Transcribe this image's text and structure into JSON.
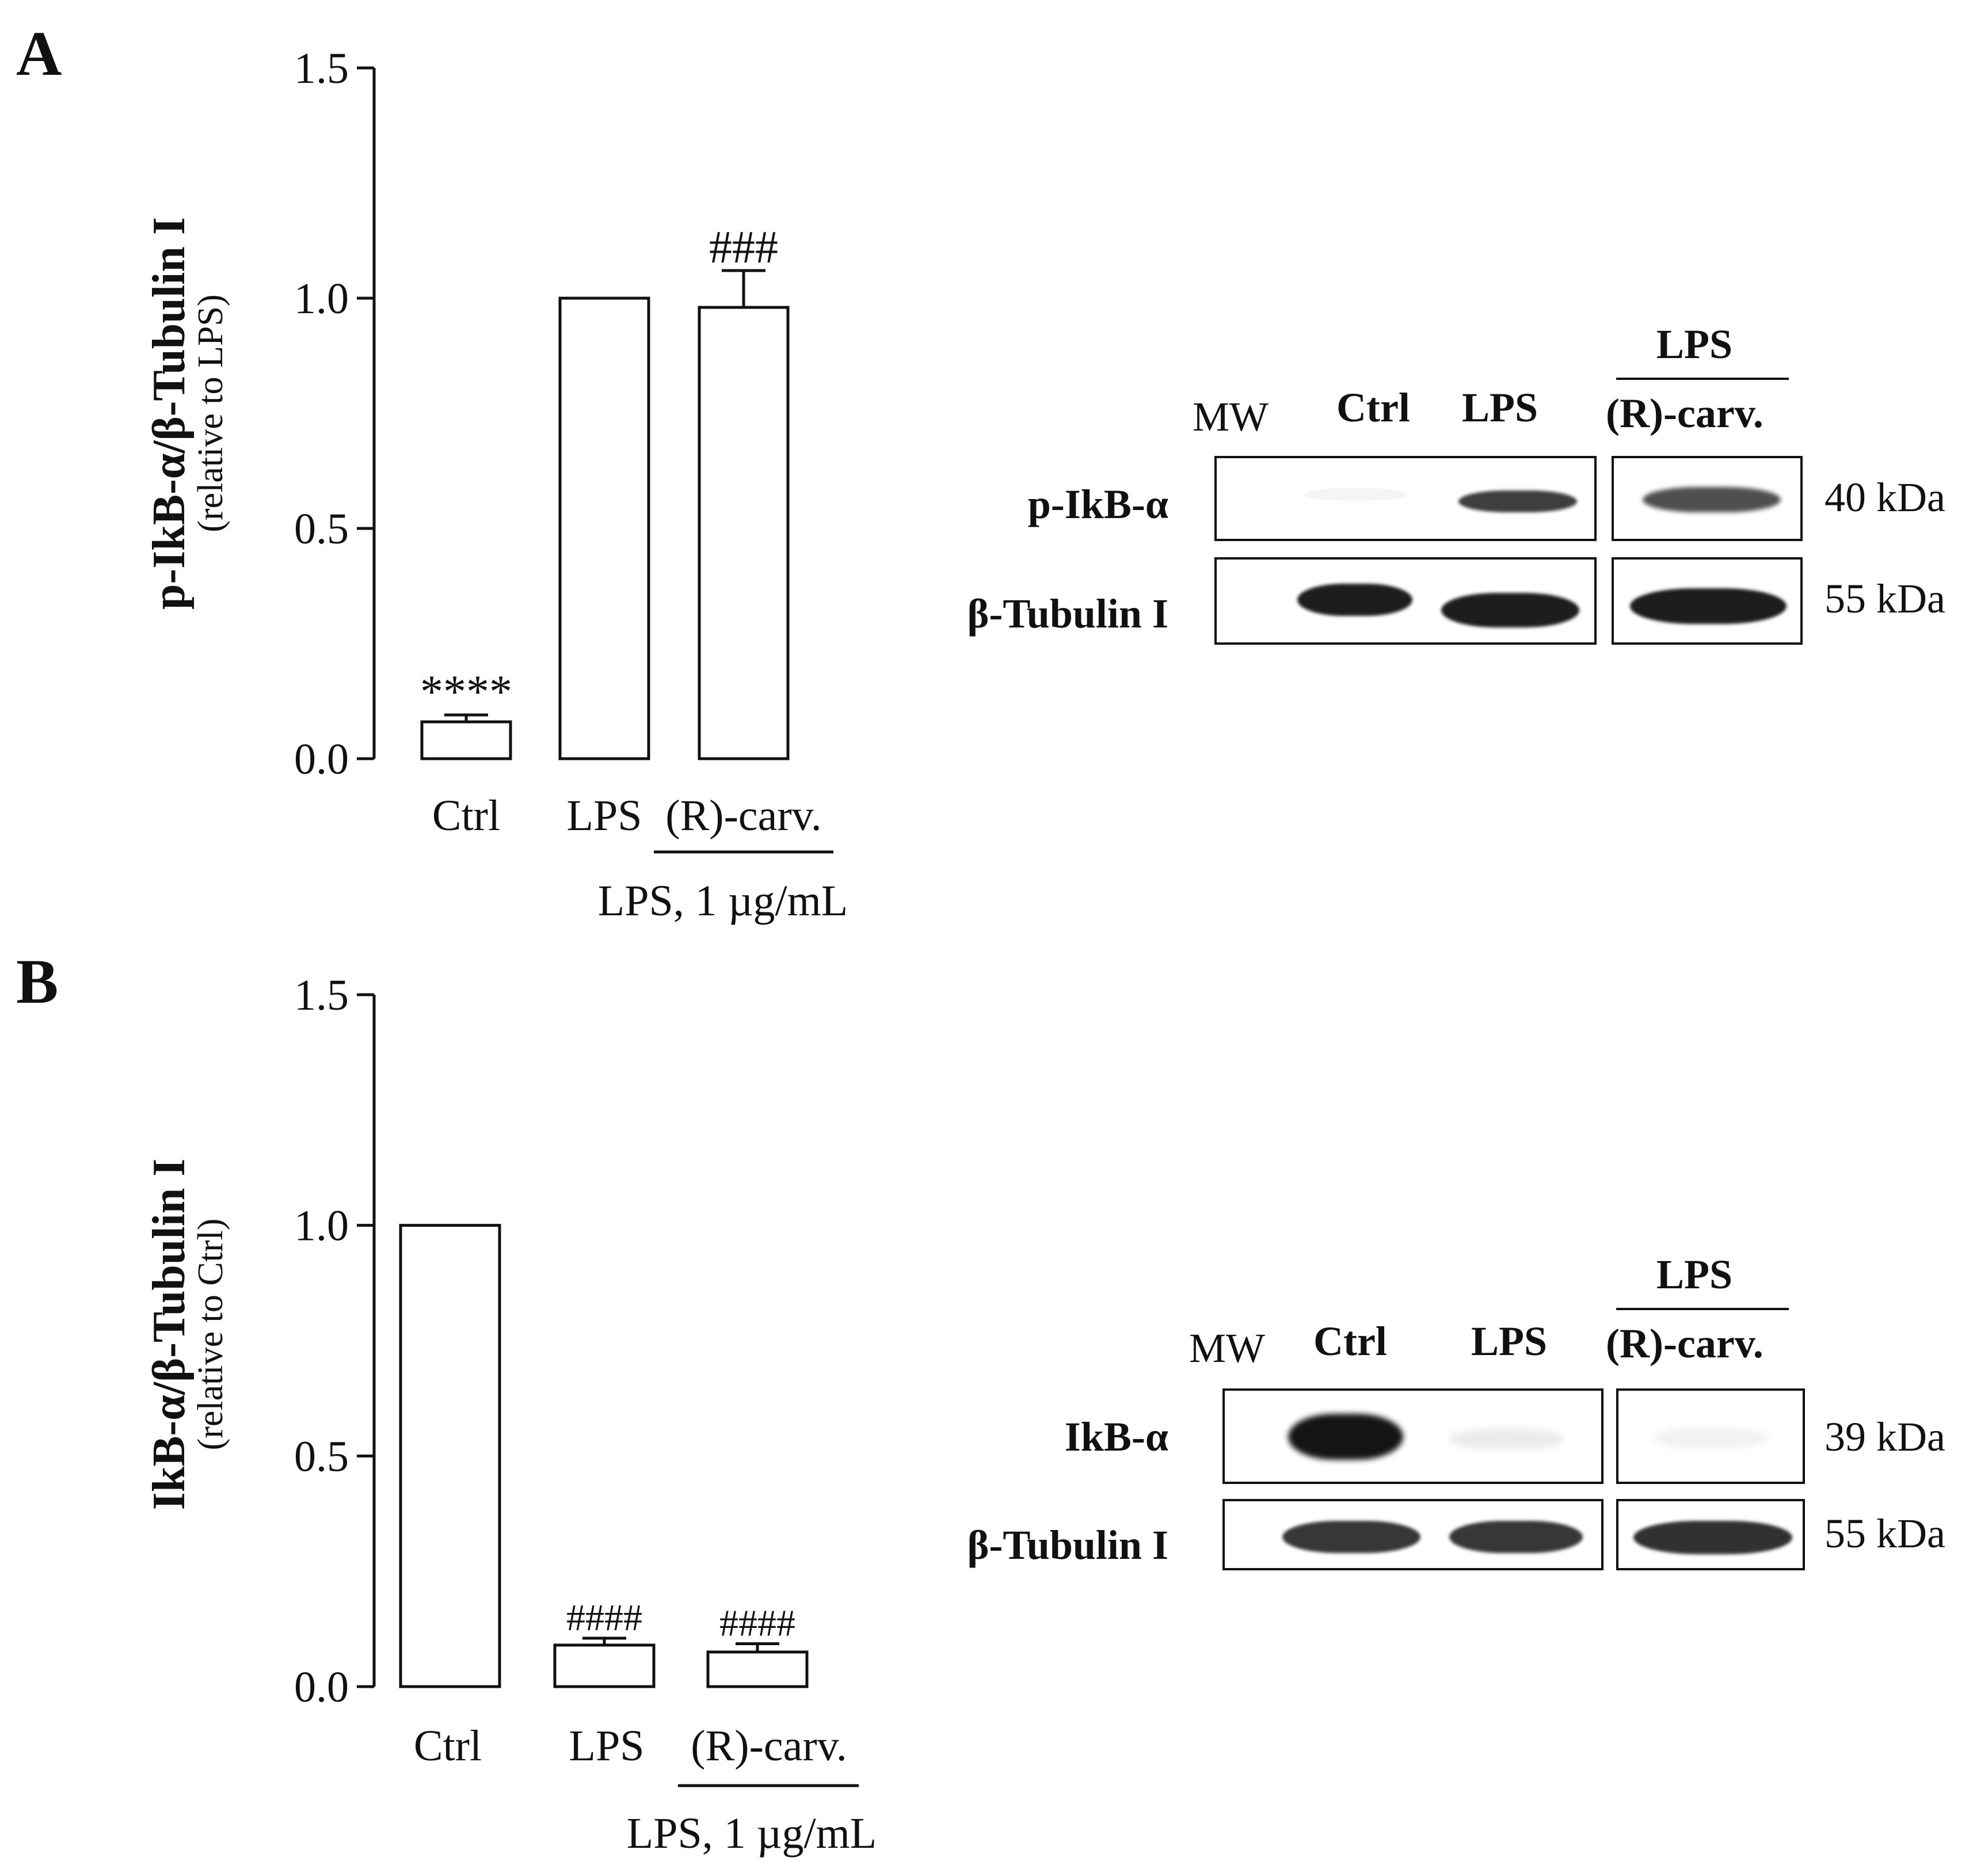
{
  "panels": [
    {
      "letter": "A",
      "blot": {
        "mw_label": "MW",
        "lane_labels": [
          "Ctrl",
          "LPS",
          "(R)-carv."
        ],
        "group_label": "LPS",
        "rows": [
          {
            "protein": "p-IkB-α",
            "kda": "40 kDa"
          },
          {
            "protein": "β-Tubulin I",
            "kda": "55 kDa"
          }
        ]
      }
    },
    {
      "letter": "B",
      "blot": {
        "mw_label": "MW",
        "lane_labels": [
          "Ctrl",
          "LPS",
          "(R)-carv."
        ],
        "group_label": "LPS",
        "rows": [
          {
            "protein": "IkB-α",
            "kda": "39 kDa"
          },
          {
            "protein": "β-Tubulin I",
            "kda": "55 kDa"
          }
        ]
      }
    }
  ],
  "chart_data": [
    {
      "type": "bar",
      "ylabel": "p-IkB-α/β-Tubulin I",
      "ylabel_sub": "(relative to LPS)",
      "yticks": [
        "0.0",
        "0.5",
        "1.0",
        "1.5"
      ],
      "ylim": [
        0,
        1.5
      ],
      "categories": [
        "Ctrl",
        "LPS",
        "(R)-carv."
      ],
      "values": [
        0.08,
        1.0,
        0.98
      ],
      "errors": [
        0.015,
        0,
        0.08
      ],
      "annotations": [
        "****",
        "",
        "###"
      ],
      "group_label": "LPS, 1 µg/mL"
    },
    {
      "type": "bar",
      "ylabel": "IkB-α/β-Tubulin I",
      "ylabel_sub": "(relative to Ctrl)",
      "yticks": [
        "0.0",
        "0.5",
        "1.0",
        "1.5"
      ],
      "ylim": [
        0,
        1.5
      ],
      "categories": [
        "Ctrl",
        "LPS",
        "(R)-carv."
      ],
      "values": [
        1.0,
        0.09,
        0.075
      ],
      "errors": [
        0,
        0.015,
        0.018
      ],
      "annotations": [
        "",
        "####",
        "####"
      ],
      "group_label": "LPS, 1 µg/mL"
    }
  ]
}
